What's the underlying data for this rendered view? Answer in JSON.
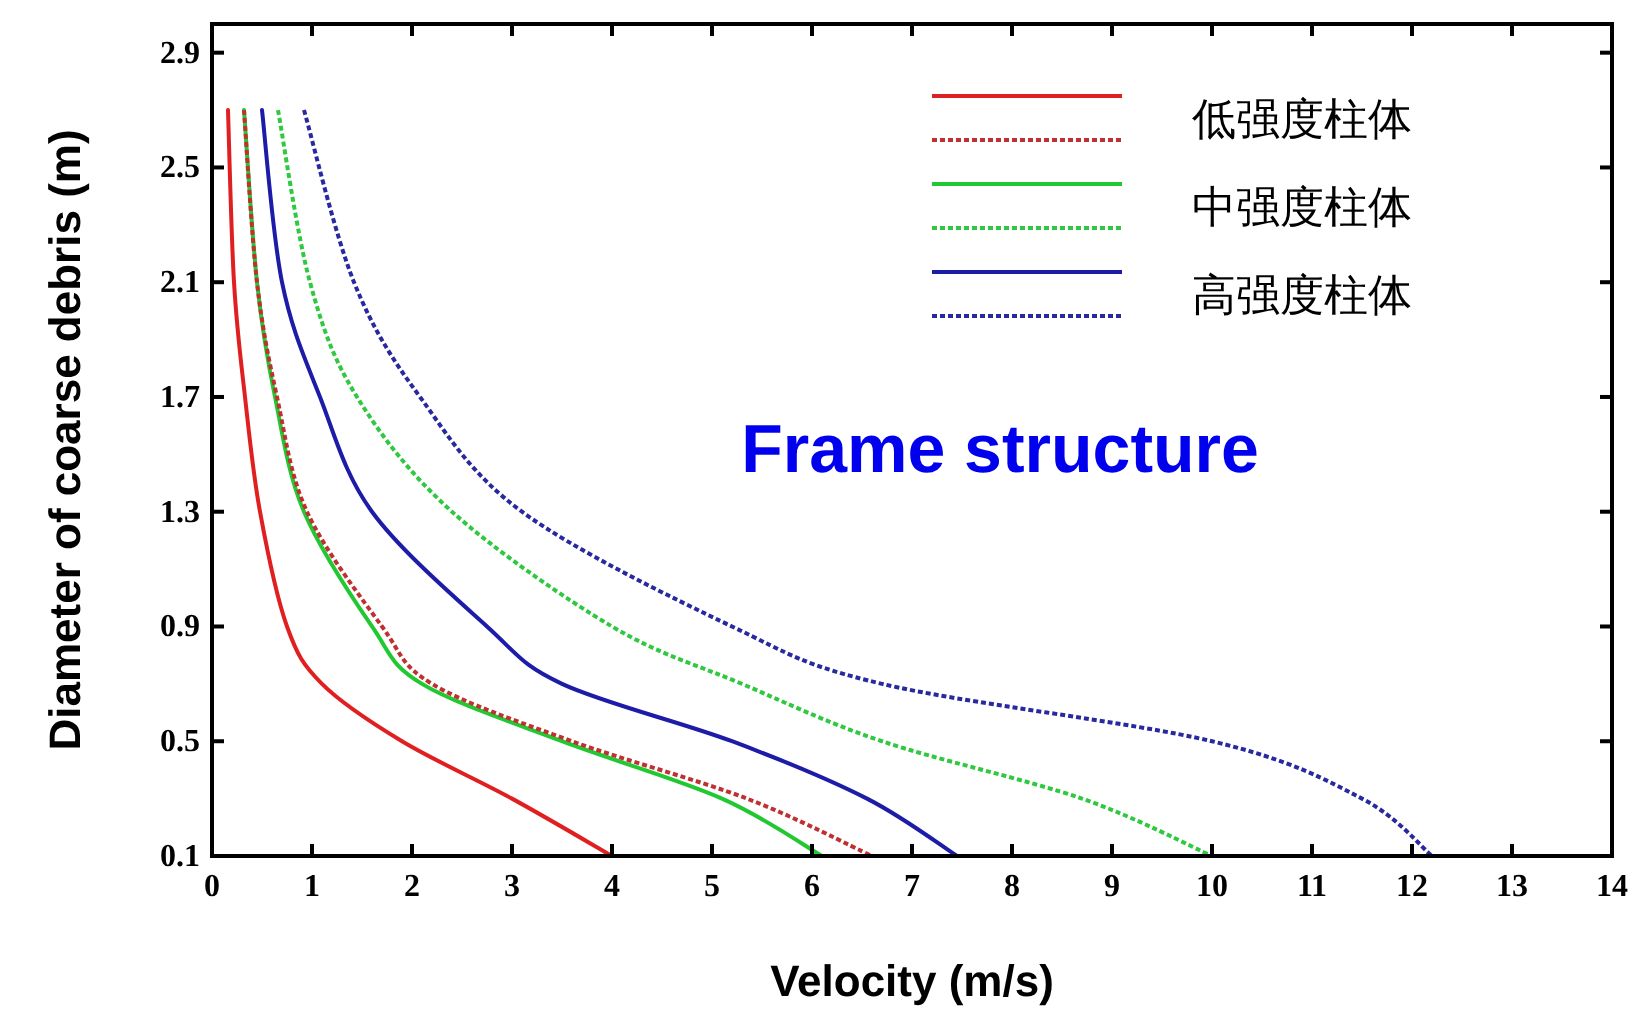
{
  "chart_data": {
    "type": "line",
    "xlabel": "Velocity (m/s)",
    "ylabel": "Diameter of coarse debris (m)",
    "annotations": [
      "Frame structure"
    ],
    "xlim": [
      0,
      14
    ],
    "ylim": [
      0.1,
      3.0
    ],
    "xticks": [
      0,
      1,
      2,
      3,
      4,
      5,
      6,
      7,
      8,
      9,
      10,
      11,
      12,
      13,
      14
    ],
    "yticks": [
      0.1,
      0.5,
      0.9,
      1.3,
      1.7,
      2.1,
      2.5,
      2.9
    ],
    "legend": "top right",
    "series": [
      {
        "name": "低强度柱体",
        "color": "#e02020",
        "line_style": "solid",
        "x": [
          0.16,
          0.22,
          0.33,
          0.48,
          0.75,
          1.1,
          1.9,
          3.0,
          4.0
        ],
        "values": [
          2.7,
          2.1,
          1.7,
          1.3,
          0.9,
          0.7,
          0.5,
          0.3,
          0.1
        ]
      },
      {
        "color": "#c03030",
        "line_style": "dotted",
        "x": [
          0.32,
          0.45,
          0.65,
          0.95,
          1.7,
          2.2,
          3.6,
          5.35,
          6.6
        ],
        "values": [
          2.7,
          2.1,
          1.7,
          1.3,
          0.9,
          0.7,
          0.5,
          0.3,
          0.1
        ]
      },
      {
        "name": "中强度柱体",
        "color": "#22c832",
        "line_style": "solid",
        "x": [
          0.32,
          0.45,
          0.63,
          0.92,
          1.6,
          2.1,
          3.5,
          5.1,
          6.1
        ],
        "values": [
          2.7,
          2.1,
          1.7,
          1.3,
          0.9,
          0.7,
          0.5,
          0.3,
          0.1
        ]
      },
      {
        "color": "#30c840",
        "line_style": "dotted",
        "x": [
          0.66,
          0.98,
          1.45,
          2.4,
          4.0,
          5.3,
          6.7,
          8.7,
          10.0
        ],
        "values": [
          2.7,
          2.1,
          1.7,
          1.3,
          0.9,
          0.7,
          0.5,
          0.3,
          0.1
        ]
      },
      {
        "name": "高强度柱体",
        "color": "#1c1ca8",
        "line_style": "solid",
        "x": [
          0.5,
          0.7,
          1.08,
          1.6,
          2.75,
          3.5,
          5.2,
          6.55,
          7.45
        ],
        "values": [
          2.7,
          2.1,
          1.7,
          1.3,
          0.9,
          0.7,
          0.5,
          0.3,
          0.1
        ]
      },
      {
        "color": "#2828a0",
        "line_style": "dotted",
        "x": [
          0.92,
          1.42,
          2.08,
          3.1,
          5.2,
          6.7,
          10.0,
          11.5,
          12.2
        ],
        "values": [
          2.7,
          2.1,
          1.7,
          1.3,
          0.9,
          0.7,
          0.5,
          0.3,
          0.1
        ]
      }
    ]
  }
}
